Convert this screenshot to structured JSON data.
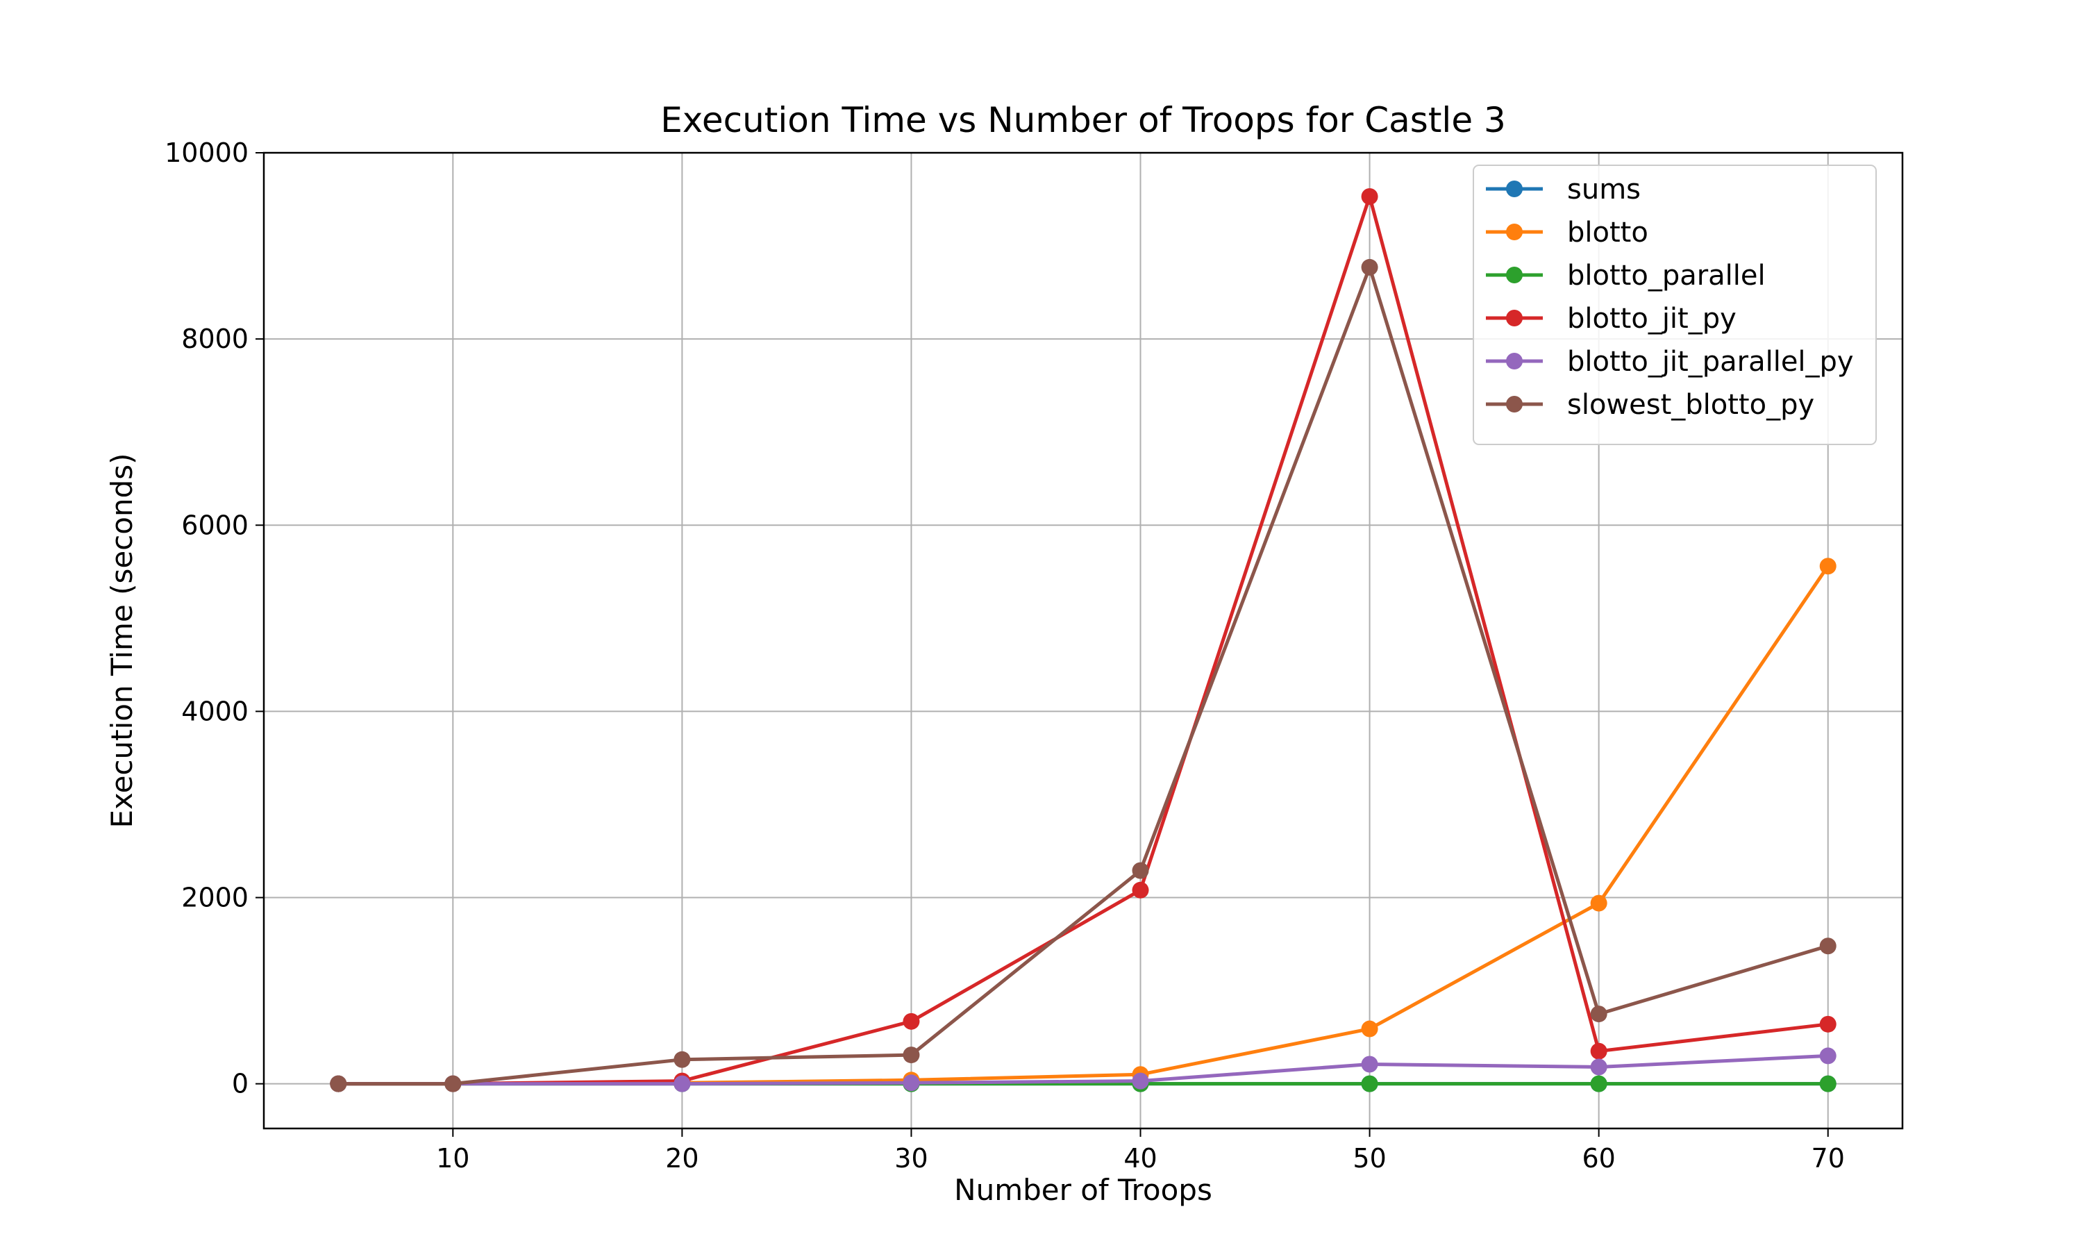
{
  "chart_data": {
    "type": "line",
    "title": "Execution Time vs Number of Troops for Castle 3",
    "xlabel": "Number of Troops",
    "ylabel": "Execution Time (seconds)",
    "x": [
      5,
      10,
      20,
      30,
      40,
      50,
      60,
      70
    ],
    "xlim": [
      1.75,
      73.25
    ],
    "ylim": [
      -480,
      10000
    ],
    "xticks": [
      10,
      20,
      30,
      40,
      50,
      60,
      70
    ],
    "yticks": [
      0,
      2000,
      4000,
      6000,
      8000,
      10000
    ],
    "grid": true,
    "legend_position": "top-right",
    "series": [
      {
        "name": "sums",
        "color": "#1f77b4",
        "values": [
          0,
          0,
          0,
          0,
          0,
          0,
          0,
          0
        ]
      },
      {
        "name": "blotto",
        "color": "#ff7f0e",
        "values": [
          0,
          0,
          10,
          40,
          100,
          590,
          1940,
          5560
        ]
      },
      {
        "name": "blotto_parallel",
        "color": "#2ca02c",
        "values": [
          0,
          0,
          0,
          0,
          0,
          0,
          0,
          0
        ]
      },
      {
        "name": "blotto_jit_py",
        "color": "#d62728",
        "values": [
          0,
          0,
          30,
          670,
          2080,
          9530,
          350,
          640
        ]
      },
      {
        "name": "blotto_jit_parallel_py",
        "color": "#9467bd",
        "values": [
          0,
          0,
          0,
          10,
          30,
          210,
          180,
          300
        ]
      },
      {
        "name": "slowest_blotto_py",
        "color": "#8c564b",
        "values": [
          0,
          0,
          260,
          310,
          2290,
          8770,
          750,
          1480
        ]
      }
    ]
  }
}
